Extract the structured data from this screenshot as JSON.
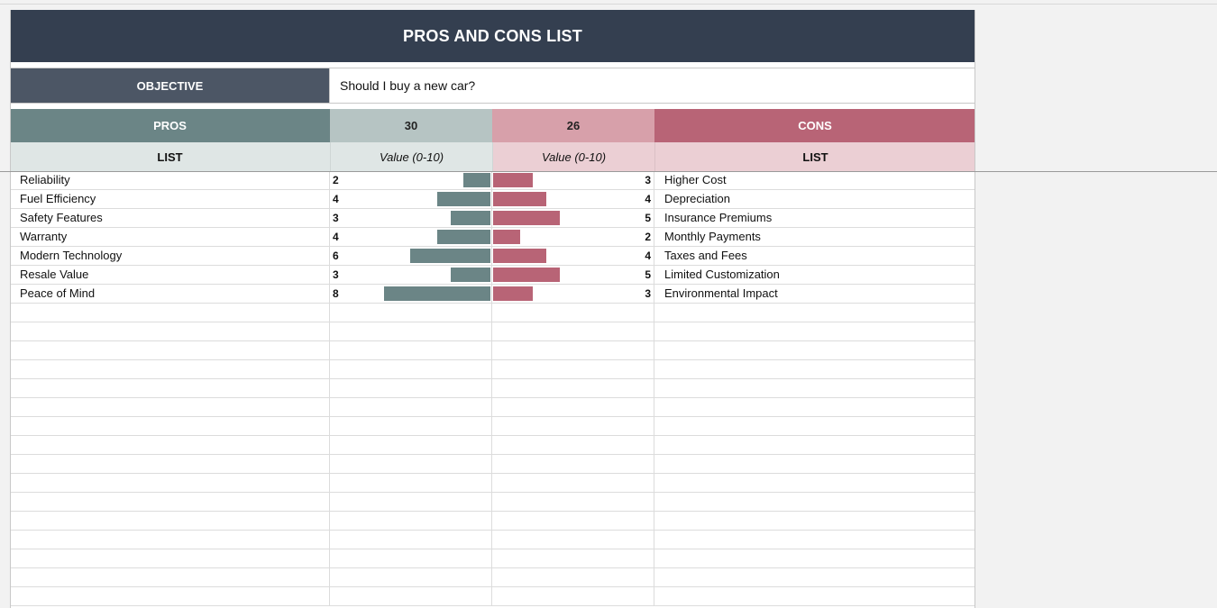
{
  "title": "PROS AND CONS LIST",
  "objective": {
    "label": "OBJECTIVE",
    "value": "Should I buy a new car?"
  },
  "headers": {
    "pros": "PROS",
    "pros_total": "30",
    "cons_total": "26",
    "cons": "CONS",
    "list_left": "LIST",
    "value_left": "Value (0-10)",
    "value_right": "Value (0-10)",
    "list_right": "LIST"
  },
  "colors": {
    "title_bg": "#343f50",
    "pros": "#6b8586",
    "cons": "#b86476"
  },
  "max_value": 10,
  "pros": [
    {
      "name": "Reliability",
      "value": 2
    },
    {
      "name": "Fuel Efficiency",
      "value": 4
    },
    {
      "name": "Safety Features",
      "value": 3
    },
    {
      "name": "Warranty",
      "value": 4
    },
    {
      "name": "Modern Technology",
      "value": 6
    },
    {
      "name": "Resale Value",
      "value": 3
    },
    {
      "name": "Peace of Mind",
      "value": 8
    }
  ],
  "cons": [
    {
      "name": "Higher Cost",
      "value": 3
    },
    {
      "name": "Depreciation",
      "value": 4
    },
    {
      "name": "Insurance Premiums",
      "value": 5
    },
    {
      "name": "Monthly Payments",
      "value": 2
    },
    {
      "name": "Taxes and Fees",
      "value": 4
    },
    {
      "name": "Limited Customization",
      "value": 5
    },
    {
      "name": "Environmental Impact",
      "value": 3
    }
  ]
}
